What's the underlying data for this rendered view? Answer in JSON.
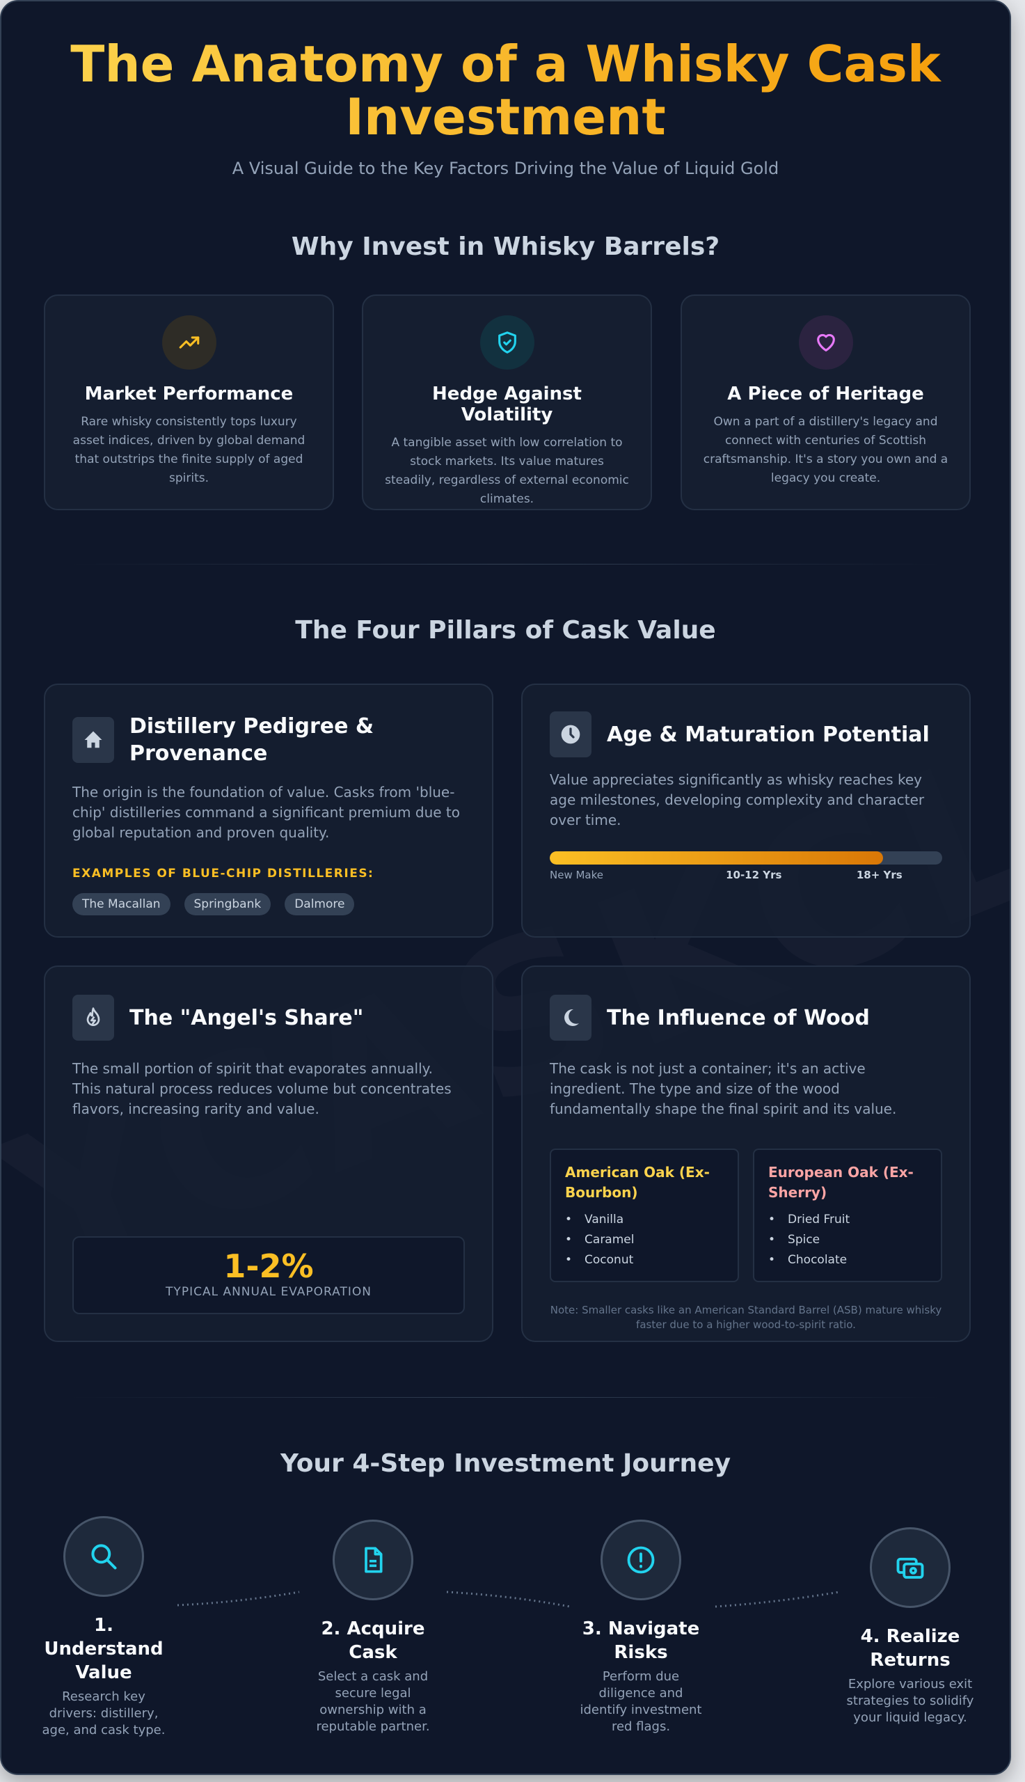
{
  "watermark": "YCASKCLU",
  "header": {
    "title": "The Anatomy of a Whisky Cask Investment",
    "subtitle": "A Visual Guide to the Key Factors Driving the Value of Liquid Gold"
  },
  "why": {
    "heading": "Why Invest in Whisky Barrels?",
    "cards": [
      {
        "icon": "trending-up-icon",
        "color": "#fbbf24",
        "title": "Market Performance",
        "desc": "Rare whisky consistently tops luxury asset indices, driven by global demand that outstrips the finite supply of aged spirits."
      },
      {
        "icon": "shield-check-icon",
        "color": "#22d3ee",
        "title": "Hedge Against Volatility",
        "desc": "A tangible asset with low correlation to stock markets. Its value matures steadily, regardless of external economic climates."
      },
      {
        "icon": "heart-icon",
        "color": "#e879f9",
        "title": "A Piece of Heritage",
        "desc": "Own a part of a distillery's legacy and connect with centuries of Scottish craftsmanship. It's a story you own and a legacy you create."
      }
    ]
  },
  "pillars": {
    "heading": "The Four Pillars of Cask Value",
    "pedigree": {
      "icon": "house-icon",
      "title": "Distillery Pedigree & Provenance",
      "desc": "The origin is the foundation of value. Casks from 'blue-chip' distilleries command a significant premium due to global reputation and proven quality.",
      "examples_label": "EXAMPLES OF BLUE-CHIP DISTILLERIES:",
      "examples": [
        "The Macallan",
        "Springbank",
        "Dalmore"
      ]
    },
    "age": {
      "icon": "clock-icon",
      "title": "Age & Maturation Potential",
      "desc": "Value appreciates significantly as whisky reaches key age milestones, developing complexity and character over time.",
      "progress_percent": 85,
      "labels": [
        "New Make",
        "10-12 Yrs",
        "18+ Yrs"
      ]
    },
    "angel": {
      "icon": "flame-icon",
      "title": "The \"Angel's Share\"",
      "desc": "The small portion of spirit that evaporates annually. This natural process reduces volume but concentrates flavors, increasing rarity and value.",
      "stat_value": "1-2%",
      "stat_label": "TYPICAL ANNUAL EVAPORATION"
    },
    "wood": {
      "icon": "moon-icon",
      "title": "The Influence of Wood",
      "desc": "The cask is not just a container; it's an active ingredient. The type and size of the wood fundamentally shape the final spirit and its value.",
      "american": {
        "title": "American Oak (Ex-Bourbon)",
        "color": "#fcd34d",
        "notes": [
          "Vanilla",
          "Caramel",
          "Coconut"
        ]
      },
      "european": {
        "title": "European Oak (Ex-Sherry)",
        "color": "#fca5a5",
        "notes": [
          "Dried Fruit",
          "Spice",
          "Chocolate"
        ]
      },
      "note": "Note: Smaller casks like an American Standard Barrel (ASB) mature whisky faster due to a higher wood-to-spirit ratio."
    }
  },
  "journey": {
    "heading": "Your 4-Step Investment Journey",
    "steps": [
      {
        "icon": "search-icon",
        "title": "1. Understand Value",
        "desc": "Research key drivers: distillery, age, and cask type."
      },
      {
        "icon": "file-text-icon",
        "title": "2. Acquire Cask",
        "desc": "Select a cask and secure legal ownership with a reputable partner."
      },
      {
        "icon": "alert-circle-icon",
        "title": "3. Navigate Risks",
        "desc": "Perform due diligence and identify investment red flags."
      },
      {
        "icon": "banknote-icon",
        "title": "4. Realize Returns",
        "desc": "Explore various exit strategies to solidify your liquid legacy."
      }
    ]
  }
}
